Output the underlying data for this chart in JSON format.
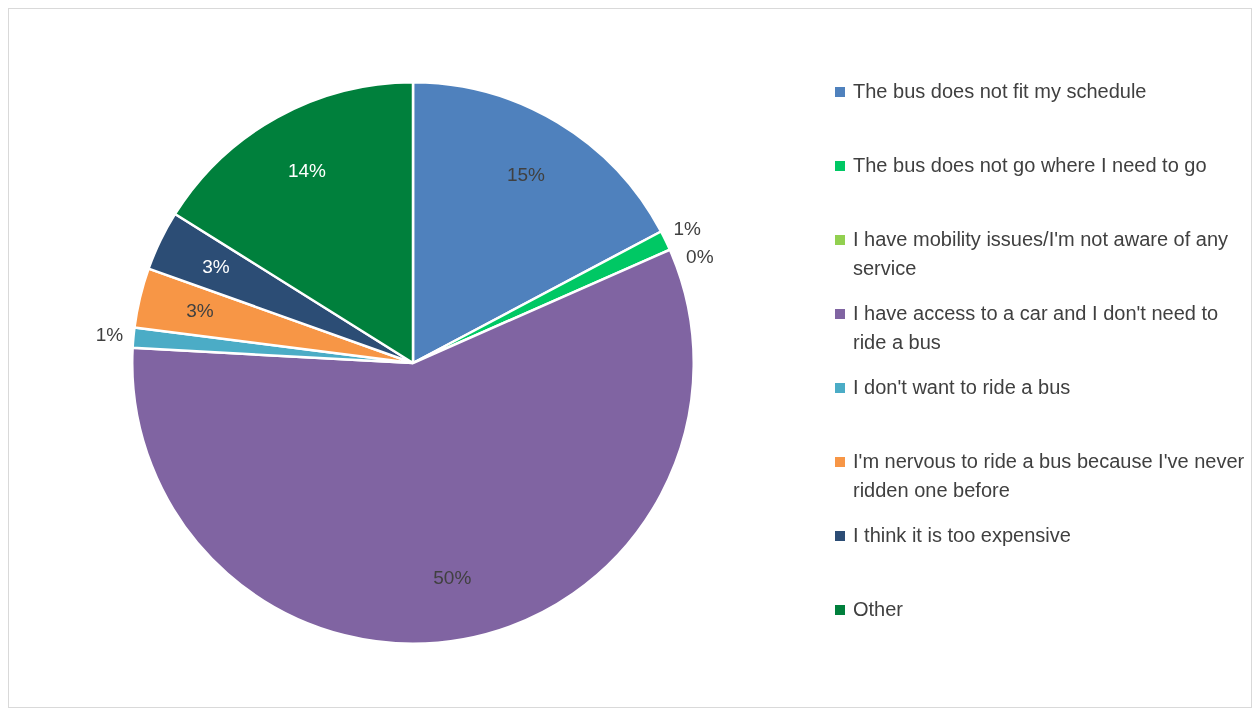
{
  "chart_data": {
    "type": "pie",
    "categories": [
      "The bus does not fit my schedule",
      "The bus does not go where I need to go",
      "I have mobility issues/I'm not aware of any service",
      "I have access to a car and I don't need to ride a bus",
      "I don't want to ride a bus",
      "I'm nervous to ride a bus because I've never ridden one before",
      "I think it is too expensive",
      "Other"
    ],
    "values": [
      15,
      1,
      0,
      50,
      1,
      3,
      3,
      14
    ],
    "colors": [
      "#4f81bd",
      "#00c864",
      "#92d050",
      "#8064a2",
      "#4bacc6",
      "#f79646",
      "#2c4d75",
      "#00803c"
    ],
    "value_labels": [
      "15%",
      "1%",
      "0%",
      "50%",
      "1%",
      "3%",
      "3%",
      "14%"
    ],
    "legend": "right"
  }
}
